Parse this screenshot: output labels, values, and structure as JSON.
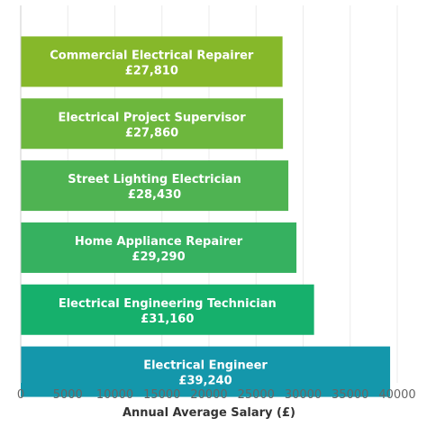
{
  "chart_data": {
    "type": "bar",
    "orientation": "horizontal",
    "categories": [
      "Commercial Electrical Repairer",
      "Electrical Project Supervisor",
      "Street Lighting Electrician",
      "Home Appliance Repairer",
      "Electrical Engineering Technician",
      "Electrical Engineer"
    ],
    "values": [
      27810,
      27860,
      28430,
      29290,
      31160,
      39240
    ],
    "value_labels": [
      "£27,810",
      "£27,860",
      "£28,430",
      "£29,290",
      "£31,160",
      "£39,240"
    ],
    "bar_colors": [
      "#86b82a",
      "#6db73d",
      "#4fb352",
      "#36b160",
      "#16b06c",
      "#1497ab"
    ],
    "xlabel": "Annual Average Salary (£)",
    "ylabel": "",
    "title": "",
    "xlim": [
      0,
      40000
    ],
    "xticks": [
      0,
      5000,
      10000,
      15000,
      20000,
      25000,
      30000,
      35000,
      40000
    ],
    "xtick_labels": [
      "0",
      "5000",
      "10000",
      "15000",
      "20000",
      "25000",
      "30000",
      "35000",
      "40000"
    ],
    "grid": "vertical",
    "legend": "none"
  }
}
